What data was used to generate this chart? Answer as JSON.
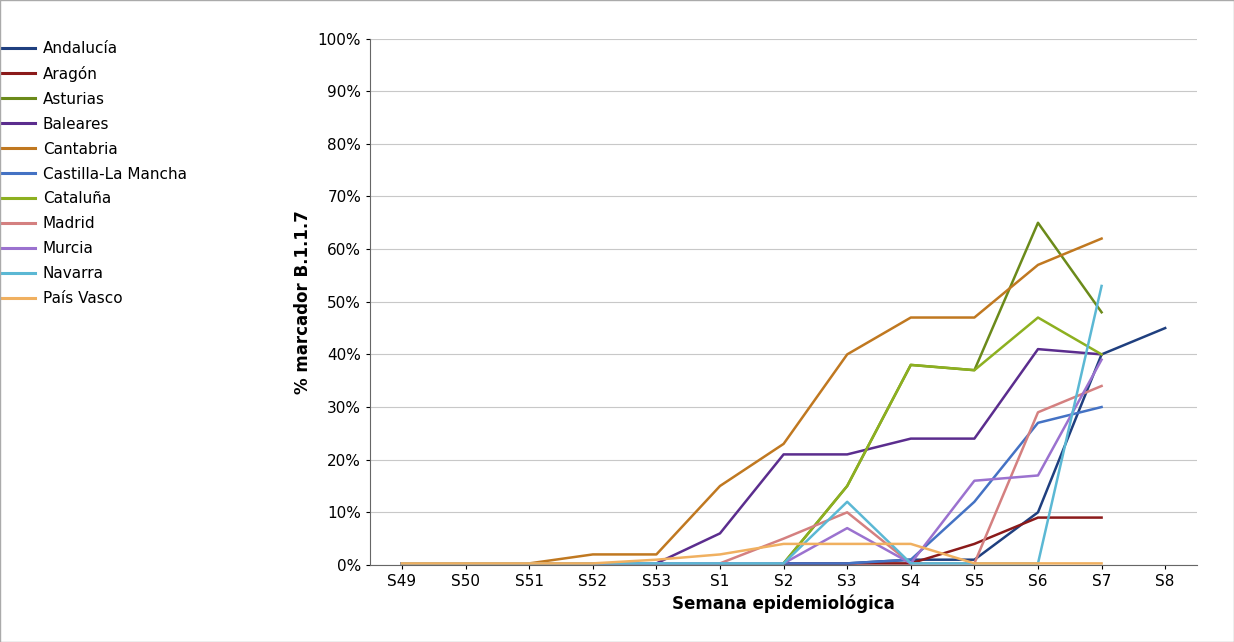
{
  "x_labels": [
    "S49",
    "S50",
    "S51",
    "S52",
    "S53",
    "S1",
    "S2",
    "S3",
    "S4",
    "S5",
    "S6",
    "S7",
    "S8"
  ],
  "series": [
    {
      "name": "Andalucía",
      "color": "#1F3F7F",
      "values": [
        0.003,
        0.003,
        0.003,
        0.003,
        0.003,
        0.003,
        0.003,
        0.003,
        0.01,
        0.01,
        0.1,
        0.4,
        0.45
      ]
    },
    {
      "name": "Aragón",
      "color": "#8B1A1A",
      "values": [
        0.003,
        0.003,
        0.003,
        0.003,
        0.003,
        0.003,
        0.003,
        0.003,
        0.003,
        0.04,
        0.09,
        0.09,
        null
      ]
    },
    {
      "name": "Asturias",
      "color": "#6B8A1A",
      "values": [
        0.003,
        0.003,
        0.003,
        0.003,
        0.003,
        0.003,
        0.003,
        0.15,
        0.38,
        0.37,
        0.65,
        0.48,
        null
      ]
    },
    {
      "name": "Baleares",
      "color": "#5B2D8E",
      "values": [
        0.003,
        0.003,
        0.003,
        0.003,
        0.003,
        0.06,
        0.21,
        0.21,
        0.24,
        0.24,
        0.41,
        0.4,
        null
      ]
    },
    {
      "name": "Cantabria",
      "color": "#C07820",
      "values": [
        0.003,
        0.003,
        0.003,
        0.02,
        0.02,
        0.15,
        0.23,
        0.4,
        0.47,
        0.47,
        0.57,
        0.62,
        null
      ]
    },
    {
      "name": "Castilla-La Mancha",
      "color": "#4472C4",
      "values": [
        0.003,
        0.003,
        0.003,
        0.003,
        0.003,
        0.003,
        0.003,
        0.003,
        0.01,
        0.12,
        0.27,
        0.3,
        null
      ]
    },
    {
      "name": "Cataluña",
      "color": "#8DB020",
      "values": [
        0.003,
        0.003,
        0.003,
        0.003,
        0.003,
        0.003,
        0.003,
        0.15,
        0.38,
        0.37,
        0.47,
        0.4,
        null
      ]
    },
    {
      "name": "Madrid",
      "color": "#D48080",
      "values": [
        0.003,
        0.003,
        0.003,
        0.003,
        0.003,
        0.003,
        0.05,
        0.1,
        0.003,
        0.003,
        0.29,
        0.34,
        null
      ]
    },
    {
      "name": "Murcia",
      "color": "#9B72CF",
      "values": [
        0.003,
        0.003,
        0.003,
        0.003,
        0.003,
        0.003,
        0.003,
        0.07,
        0.003,
        0.16,
        0.17,
        0.39,
        null
      ]
    },
    {
      "name": "Navarra",
      "color": "#5BB8D4",
      "values": [
        0.003,
        0.003,
        0.003,
        0.003,
        0.003,
        0.003,
        0.003,
        0.12,
        0.003,
        0.003,
        0.003,
        0.53,
        null
      ]
    },
    {
      "name": "País Vasco",
      "color": "#F0B060",
      "values": [
        0.003,
        0.003,
        0.003,
        0.003,
        0.01,
        0.02,
        0.04,
        0.04,
        0.04,
        0.003,
        0.003,
        0.003,
        null
      ]
    }
  ],
  "ylabel": "% marcador B.1.1.7",
  "xlabel": "Semana epidemiológica",
  "ylim": [
    0,
    1.0
  ],
  "yticks": [
    0.0,
    0.1,
    0.2,
    0.3,
    0.4,
    0.5,
    0.6,
    0.7,
    0.8,
    0.9,
    1.0
  ],
  "ytick_labels": [
    "0%",
    "10%",
    "20%",
    "30%",
    "40%",
    "50%",
    "60%",
    "70%",
    "80%",
    "90%",
    "100%"
  ],
  "background_color": "#FFFFFF",
  "grid_color": "#C8C8C8",
  "linewidth": 1.8,
  "legend_fontsize": 11,
  "axis_fontsize": 11,
  "label_fontsize": 12
}
